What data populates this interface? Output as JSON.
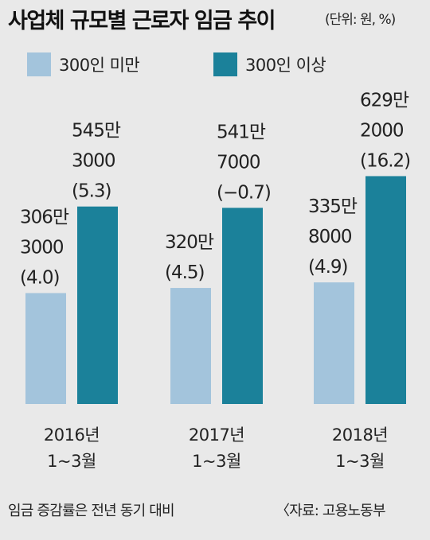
{
  "title": "사업체 규모별 근로자 임금 추이",
  "unit": "(단위: 원, %)",
  "footer": {
    "note": "임금 증감률은 전년 동기 대비",
    "source": "〈자료: 고용노동부"
  },
  "colors": {
    "small": "#a3c4dc",
    "large": "#1b819a"
  },
  "chart_data": {
    "type": "bar",
    "categories": [
      [
        "2016년",
        "1~3월"
      ],
      [
        "2017년",
        "1~3월"
      ],
      [
        "2018년",
        "1~3월"
      ]
    ],
    "series": [
      {
        "name": "300인 미만",
        "values": [
          3063000,
          3204500,
          3358000
        ],
        "labels": [
          [
            "306만",
            "3000",
            "(4.0)"
          ],
          [
            "320만",
            "(4.5)"
          ],
          [
            "335만",
            "8000",
            "(4.9)"
          ]
        ],
        "growth_pct": [
          4.0,
          4.5,
          4.9
        ]
      },
      {
        "name": "300인 이상",
        "values": [
          5453000,
          5417000,
          6292000
        ],
        "labels": [
          [
            "545만",
            "3000",
            "(5.3)"
          ],
          [
            "541만",
            "7000",
            "(−0.7)"
          ],
          [
            "629만",
            "2000",
            "(16.2)"
          ]
        ],
        "growth_pct": [
          5.3,
          -0.7,
          16.2
        ]
      }
    ],
    "ylim": [
      0,
      6500000
    ],
    "grid": false,
    "legend_position": "top-left"
  }
}
